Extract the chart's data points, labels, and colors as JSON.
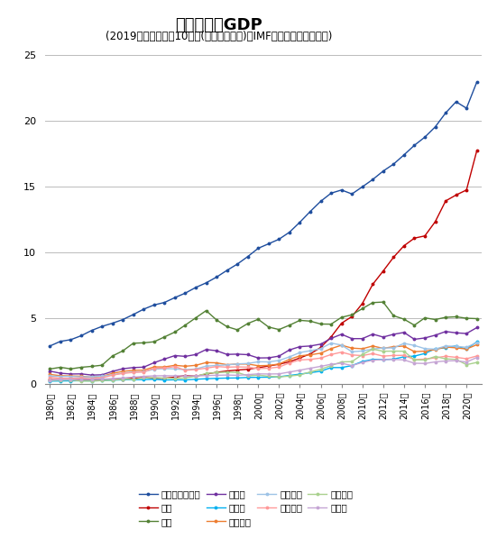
{
  "title": "主要国名目GDP",
  "subtitle": "(2019年時点の上位10か国(米ドルベース)、IMF予想含む、兆米ドル)",
  "years": [
    1980,
    1981,
    1982,
    1983,
    1984,
    1985,
    1986,
    1987,
    1988,
    1989,
    1990,
    1991,
    1992,
    1993,
    1994,
    1995,
    1996,
    1997,
    1998,
    1999,
    2000,
    2001,
    2002,
    2003,
    2004,
    2005,
    2006,
    2007,
    2008,
    2009,
    2010,
    2011,
    2012,
    2013,
    2014,
    2015,
    2016,
    2017,
    2018,
    2019,
    2020,
    2021
  ],
  "series": [
    {
      "label": "アメリカ合衆国",
      "color": "#1f4e9e",
      "data": [
        2.86,
        3.21,
        3.34,
        3.64,
        4.04,
        4.35,
        4.59,
        4.87,
        5.25,
        5.66,
        5.98,
        6.17,
        6.54,
        6.88,
        7.31,
        7.66,
        8.1,
        8.61,
        9.09,
        9.66,
        10.29,
        10.63,
        10.98,
        11.51,
        12.27,
        13.09,
        13.86,
        14.48,
        14.72,
        14.42,
        14.96,
        15.52,
        16.16,
        16.69,
        17.39,
        18.12,
        18.74,
        19.52,
        20.58,
        21.43,
        20.94,
        22.94
      ]
    },
    {
      "label": "中国",
      "color": "#c00000",
      "data": [
        0.3,
        0.29,
        0.28,
        0.3,
        0.31,
        0.31,
        0.3,
        0.33,
        0.42,
        0.46,
        0.39,
        0.41,
        0.49,
        0.62,
        0.56,
        0.73,
        0.86,
        0.96,
        1.03,
        1.09,
        1.21,
        1.34,
        1.47,
        1.66,
        1.95,
        2.26,
        2.75,
        3.55,
        4.59,
        5.1,
        6.09,
        7.55,
        8.56,
        9.61,
        10.48,
        11.06,
        11.23,
        12.31,
        13.89,
        14.34,
        14.72,
        17.73
      ]
    },
    {
      "label": "日本",
      "color": "#538135",
      "data": [
        1.11,
        1.24,
        1.12,
        1.24,
        1.31,
        1.4,
        2.1,
        2.49,
        3.07,
        3.1,
        3.18,
        3.55,
        3.92,
        4.45,
        5.0,
        5.55,
        4.84,
        4.33,
        4.09,
        4.57,
        4.89,
        4.3,
        4.11,
        4.44,
        4.81,
        4.75,
        4.53,
        4.52,
        5.04,
        5.23,
        5.7,
        6.16,
        6.2,
        5.16,
        4.9,
        4.44,
        5.0,
        4.87,
        5.04,
        5.08,
        4.97,
        4.94
      ]
    },
    {
      "label": "ドイツ",
      "color": "#7030a0",
      "data": [
        0.95,
        0.79,
        0.73,
        0.74,
        0.65,
        0.67,
        0.93,
        1.13,
        1.22,
        1.25,
        1.59,
        1.87,
        2.13,
        2.07,
        2.21,
        2.59,
        2.5,
        2.22,
        2.24,
        2.2,
        1.95,
        1.96,
        2.09,
        2.56,
        2.81,
        2.86,
        3.0,
        3.44,
        3.75,
        3.42,
        3.42,
        3.76,
        3.54,
        3.75,
        3.89,
        3.37,
        3.47,
        3.68,
        3.96,
        3.86,
        3.81,
        4.26
      ]
    },
    {
      "label": "インド",
      "color": "#00b0f0",
      "data": [
        0.19,
        0.2,
        0.21,
        0.22,
        0.21,
        0.23,
        0.26,
        0.29,
        0.3,
        0.3,
        0.33,
        0.27,
        0.29,
        0.28,
        0.33,
        0.37,
        0.4,
        0.42,
        0.43,
        0.47,
        0.48,
        0.49,
        0.52,
        0.62,
        0.72,
        0.83,
        0.94,
        1.22,
        1.22,
        1.37,
        1.68,
        1.84,
        1.83,
        1.86,
        2.04,
        2.09,
        2.29,
        2.65,
        2.72,
        2.87,
        2.62,
        3.18
      ]
    },
    {
      "label": "フランス",
      "color": "#ed7d31",
      "data": [
        0.7,
        0.6,
        0.58,
        0.56,
        0.49,
        0.55,
        0.78,
        0.93,
        1.01,
        1.02,
        1.27,
        1.27,
        1.39,
        1.32,
        1.39,
        1.6,
        1.58,
        1.44,
        1.49,
        1.49,
        1.36,
        1.38,
        1.49,
        1.84,
        2.11,
        2.19,
        2.31,
        2.66,
        2.92,
        2.7,
        2.65,
        2.86,
        2.68,
        2.81,
        2.85,
        2.43,
        2.47,
        2.59,
        2.78,
        2.72,
        2.63,
        2.96
      ]
    },
    {
      "label": "イギリス",
      "color": "#9dc3e6",
      "data": [
        0.57,
        0.55,
        0.54,
        0.51,
        0.51,
        0.56,
        0.67,
        0.8,
        0.89,
        0.9,
        1.1,
        1.14,
        1.12,
        1.06,
        1.11,
        1.33,
        1.38,
        1.42,
        1.5,
        1.53,
        1.66,
        1.65,
        1.76,
        2.03,
        2.36,
        2.5,
        2.66,
        3.08,
        2.93,
        2.42,
        2.48,
        2.63,
        2.71,
        2.71,
        3.06,
        2.9,
        2.66,
        2.62,
        2.86,
        2.83,
        2.76,
        3.13
      ]
    },
    {
      "label": "イタリア",
      "color": "#ff9999",
      "data": [
        0.48,
        0.41,
        0.4,
        0.42,
        0.38,
        0.44,
        0.64,
        0.78,
        0.85,
        0.89,
        1.17,
        1.18,
        1.3,
        1.01,
        1.07,
        1.17,
        1.3,
        1.25,
        1.27,
        1.25,
        1.14,
        1.17,
        1.26,
        1.57,
        1.8,
        1.84,
        1.94,
        2.21,
        2.39,
        2.18,
        2.13,
        2.28,
        2.09,
        2.14,
        2.15,
        1.83,
        1.86,
        1.96,
        2.08,
        2.0,
        1.89,
        2.1
      ]
    },
    {
      "label": "ブラジル",
      "color": "#a9d18e",
      "data": [
        0.24,
        0.26,
        0.28,
        0.19,
        0.19,
        0.23,
        0.26,
        0.33,
        0.33,
        0.42,
        0.46,
        0.42,
        0.39,
        0.43,
        0.55,
        0.77,
        0.84,
        0.87,
        0.85,
        0.59,
        0.65,
        0.56,
        0.51,
        0.57,
        0.66,
        0.89,
        1.09,
        1.37,
        1.65,
        1.67,
        2.21,
        2.62,
        2.46,
        2.47,
        2.46,
        1.8,
        1.8,
        2.06,
        1.88,
        1.84,
        1.44,
        1.61
      ]
    },
    {
      "label": "カナダ",
      "color": "#c5a5d4",
      "data": [
        0.27,
        0.3,
        0.31,
        0.32,
        0.32,
        0.35,
        0.38,
        0.43,
        0.49,
        0.55,
        0.59,
        0.6,
        0.6,
        0.58,
        0.58,
        0.61,
        0.63,
        0.65,
        0.63,
        0.68,
        0.74,
        0.73,
        0.74,
        0.88,
        1.02,
        1.17,
        1.31,
        1.47,
        1.55,
        1.37,
        1.61,
        1.78,
        1.82,
        1.84,
        1.8,
        1.55,
        1.53,
        1.65,
        1.72,
        1.74,
        1.64,
        1.99
      ]
    }
  ],
  "ylim": [
    0,
    25
  ],
  "yticks": [
    0,
    5,
    10,
    15,
    20,
    25
  ],
  "bg_color": "#ffffff",
  "grid_color": "#bbbbbb",
  "title_fontsize": 13,
  "subtitle_fontsize": 8.5,
  "legend_order": [
    "アメリカ合衆国",
    "中国",
    "日本",
    "ドイツ",
    "インド",
    "フランス",
    "イギリス",
    "イタリア",
    "ブラジル",
    "カナダ"
  ]
}
